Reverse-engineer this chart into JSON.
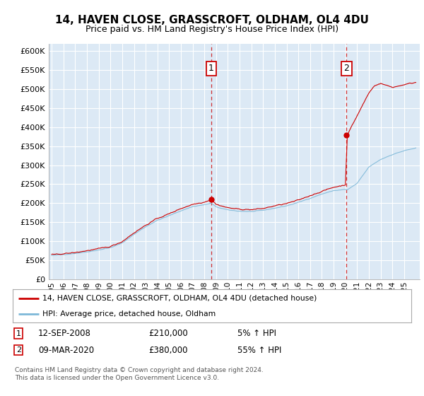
{
  "title": "14, HAVEN CLOSE, GRASSCROFT, OLDHAM, OL4 4DU",
  "subtitle": "Price paid vs. HM Land Registry's House Price Index (HPI)",
  "ylim": [
    0,
    620000
  ],
  "yticks": [
    0,
    50000,
    100000,
    150000,
    200000,
    250000,
    300000,
    350000,
    400000,
    450000,
    500000,
    550000,
    600000
  ],
  "ytick_labels": [
    "£0",
    "£50K",
    "£100K",
    "£150K",
    "£200K",
    "£250K",
    "£300K",
    "£350K",
    "£400K",
    "£450K",
    "£500K",
    "£550K",
    "£600K"
  ],
  "bg_color": "#dce9f5",
  "grid_color": "#c8d8ea",
  "hpi_color": "#7db8d8",
  "house_color": "#cc0000",
  "sale1_month": 163,
  "sale1_price": 210000,
  "sale2_month": 301,
  "sale2_price": 380000,
  "legend1_label": "14, HAVEN CLOSE, GRASSCROFT, OLDHAM, OL4 4DU (detached house)",
  "legend2_label": "HPI: Average price, detached house, Oldham",
  "sale1_year_label": "12-SEP-2008",
  "sale1_pct": "5% ↑ HPI",
  "sale2_year_label": "09-MAR-2020",
  "sale2_pct": "55% ↑ HPI",
  "footer": "Contains HM Land Registry data © Crown copyright and database right 2024.\nThis data is licensed under the Open Government Licence v3.0.",
  "start_year": 1995,
  "end_year": 2025,
  "n_months": 373
}
